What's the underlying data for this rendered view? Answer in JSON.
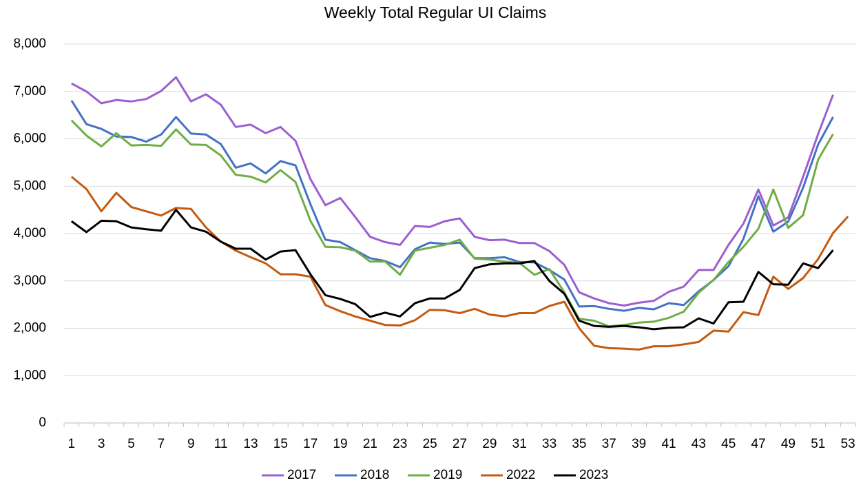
{
  "chart_data": {
    "type": "line",
    "title": "Weekly Total Regular UI Claims",
    "categories": [
      1,
      null,
      3,
      null,
      5,
      null,
      7,
      null,
      9,
      null,
      11,
      null,
      13,
      null,
      15,
      null,
      17,
      null,
      19,
      null,
      21,
      null,
      23,
      null,
      25,
      null,
      27,
      null,
      29,
      null,
      31,
      null,
      33,
      null,
      35,
      null,
      37,
      null,
      39,
      null,
      41,
      null,
      43,
      null,
      45,
      null,
      47,
      null,
      49,
      null,
      51,
      null,
      53
    ],
    "ylim": [
      0,
      8000
    ],
    "yticks": [
      0,
      {
        "value": 1000,
        "label": "1,000"
      },
      {
        "value": 2000,
        "label": "2,000"
      },
      {
        "value": 3000,
        "label": "3,000"
      },
      {
        "value": 4000,
        "label": "4,000"
      },
      {
        "value": 5000,
        "label": "5,000"
      },
      {
        "value": 6000,
        "label": "6,000"
      },
      {
        "value": 7000,
        "label": "7,000"
      },
      {
        "value": 8000,
        "label": "8,000"
      }
    ],
    "grid": true,
    "legend": "bottom",
    "series": [
      {
        "name": "2017",
        "color": "#9b5fd0",
        "values": [
          7170,
          7000,
          6750,
          6820,
          6790,
          6840,
          7010,
          7300,
          6790,
          6940,
          6720,
          6250,
          6300,
          6120,
          6250,
          5960,
          5150,
          4600,
          4750,
          4350,
          3930,
          3820,
          3760,
          4160,
          4140,
          4260,
          4320,
          3930,
          3860,
          3870,
          3800,
          3800,
          3630,
          3340,
          2760,
          2630,
          2530,
          2480,
          2540,
          2580,
          2770,
          2880,
          3230,
          3230,
          3760,
          4210,
          4930,
          4170,
          4340,
          5200,
          6100,
          6930,
          null
        ]
      },
      {
        "name": "2018",
        "color": "#4472c4",
        "values": [
          6810,
          6310,
          6210,
          6050,
          6040,
          5940,
          6090,
          6460,
          6110,
          6090,
          5890,
          5390,
          5480,
          5270,
          5530,
          5440,
          4620,
          3870,
          3820,
          3650,
          3480,
          3420,
          3290,
          3670,
          3810,
          3780,
          3810,
          3480,
          3480,
          3500,
          3400,
          3390,
          3230,
          3030,
          2460,
          2470,
          2410,
          2370,
          2430,
          2400,
          2530,
          2490,
          2780,
          3020,
          3310,
          3890,
          4790,
          4040,
          4250,
          4970,
          5880,
          6460,
          null
        ]
      },
      {
        "name": "2019",
        "color": "#70ad47",
        "values": [
          6390,
          6070,
          5840,
          6120,
          5860,
          5870,
          5850,
          6200,
          5880,
          5870,
          5650,
          5240,
          5200,
          5080,
          5340,
          5090,
          4270,
          3720,
          3710,
          3640,
          3410,
          3410,
          3130,
          3640,
          3700,
          3760,
          3870,
          3470,
          3450,
          3410,
          3380,
          3130,
          3250,
          2760,
          2200,
          2160,
          2040,
          2070,
          2120,
          2140,
          2220,
          2350,
          2750,
          3020,
          3400,
          3720,
          4100,
          4930,
          4120,
          4390,
          5560,
          6100,
          null
        ]
      },
      {
        "name": "2022",
        "color": "#c55a11",
        "values": [
          5200,
          4940,
          4470,
          4860,
          4560,
          4470,
          4380,
          4540,
          4520,
          4130,
          3830,
          3640,
          3500,
          3370,
          3140,
          3140,
          3090,
          2490,
          2360,
          2250,
          2160,
          2070,
          2060,
          2170,
          2390,
          2380,
          2320,
          2410,
          2290,
          2250,
          2320,
          2320,
          2470,
          2560,
          2000,
          1630,
          1580,
          1570,
          1550,
          1620,
          1620,
          1660,
          1710,
          1950,
          1930,
          2340,
          2280,
          3090,
          2830,
          3060,
          3460,
          4010,
          4360
        ]
      },
      {
        "name": "2023",
        "color": "#000000",
        "values": [
          4260,
          4030,
          4270,
          4260,
          4130,
          4090,
          4060,
          4500,
          4130,
          4040,
          3830,
          3680,
          3680,
          3450,
          3620,
          3650,
          3140,
          2700,
          2620,
          2510,
          2240,
          2330,
          2250,
          2530,
          2630,
          2630,
          2810,
          3270,
          3350,
          3370,
          3370,
          3420,
          3000,
          2730,
          2160,
          2050,
          2030,
          2050,
          2020,
          1980,
          2010,
          2020,
          2210,
          2100,
          2550,
          2560,
          3190,
          2930,
          2920,
          3370,
          3270,
          3650,
          null
        ]
      }
    ]
  }
}
